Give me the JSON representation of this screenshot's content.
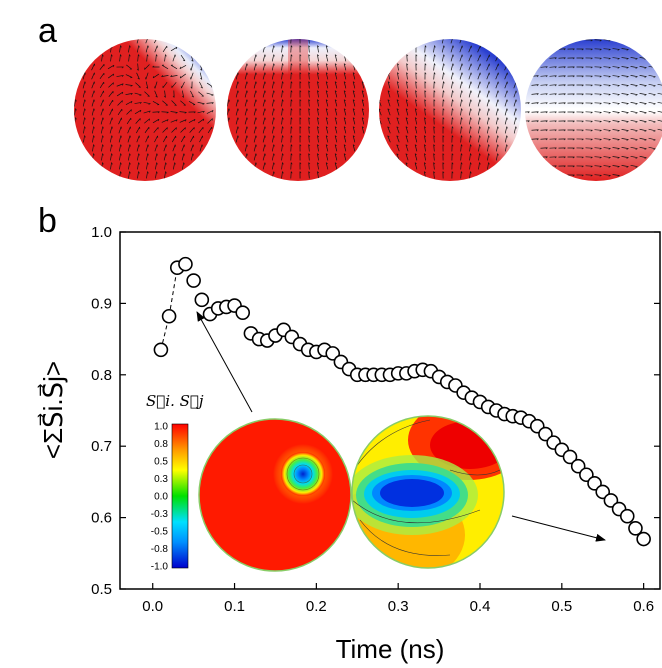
{
  "panel_a": {
    "label": "a",
    "colors": {
      "positive": "#e02020",
      "negative": "#2a3fd0",
      "neutral": "#ffffff",
      "arrow": "#111111"
    }
  },
  "panel_b": {
    "label": "b"
  },
  "colorbar": {
    "label": "S⃗i. S⃗j",
    "ticks": [
      "1.0",
      "0.8",
      "0.5",
      "0.3",
      "0.0",
      "-0.3",
      "-0.5",
      "-0.8",
      "-1.0"
    ]
  },
  "chart_data": {
    "type": "scatter",
    "xlabel": "Time (ns)",
    "ylabel": "<ΣS⃗i.S⃗j>",
    "xlim": [
      -0.04,
      0.62
    ],
    "ylim": [
      0.5,
      1.0
    ],
    "xticks": [
      "0.0",
      "0.1",
      "0.2",
      "0.3",
      "0.4",
      "0.5",
      "0.6"
    ],
    "yticks": [
      "0.5",
      "0.6",
      "0.7",
      "0.8",
      "0.9",
      "1.0"
    ],
    "marker": "open-circle",
    "x": [
      0.01,
      0.02,
      0.03,
      0.04,
      0.05,
      0.06,
      0.07,
      0.08,
      0.09,
      0.1,
      0.11,
      0.12,
      0.13,
      0.14,
      0.15,
      0.16,
      0.17,
      0.18,
      0.19,
      0.2,
      0.21,
      0.22,
      0.23,
      0.24,
      0.25,
      0.26,
      0.27,
      0.28,
      0.29,
      0.3,
      0.31,
      0.32,
      0.33,
      0.34,
      0.35,
      0.36,
      0.37,
      0.38,
      0.39,
      0.4,
      0.41,
      0.42,
      0.43,
      0.44,
      0.45,
      0.46,
      0.47,
      0.48,
      0.49,
      0.5,
      0.51,
      0.52,
      0.53,
      0.54,
      0.55,
      0.56,
      0.57,
      0.58,
      0.59,
      0.6
    ],
    "y": [
      0.835,
      0.882,
      0.95,
      0.955,
      0.932,
      0.905,
      0.885,
      0.893,
      0.895,
      0.897,
      0.887,
      0.858,
      0.85,
      0.848,
      0.855,
      0.863,
      0.853,
      0.843,
      0.835,
      0.832,
      0.835,
      0.83,
      0.818,
      0.808,
      0.8,
      0.8,
      0.8,
      0.8,
      0.8,
      0.802,
      0.802,
      0.805,
      0.807,
      0.805,
      0.797,
      0.79,
      0.785,
      0.775,
      0.768,
      0.762,
      0.755,
      0.75,
      0.745,
      0.742,
      0.74,
      0.735,
      0.728,
      0.717,
      0.705,
      0.695,
      0.685,
      0.672,
      0.66,
      0.648,
      0.636,
      0.624,
      0.612,
      0.602,
      0.585,
      0.57
    ],
    "connected_points": 4
  }
}
